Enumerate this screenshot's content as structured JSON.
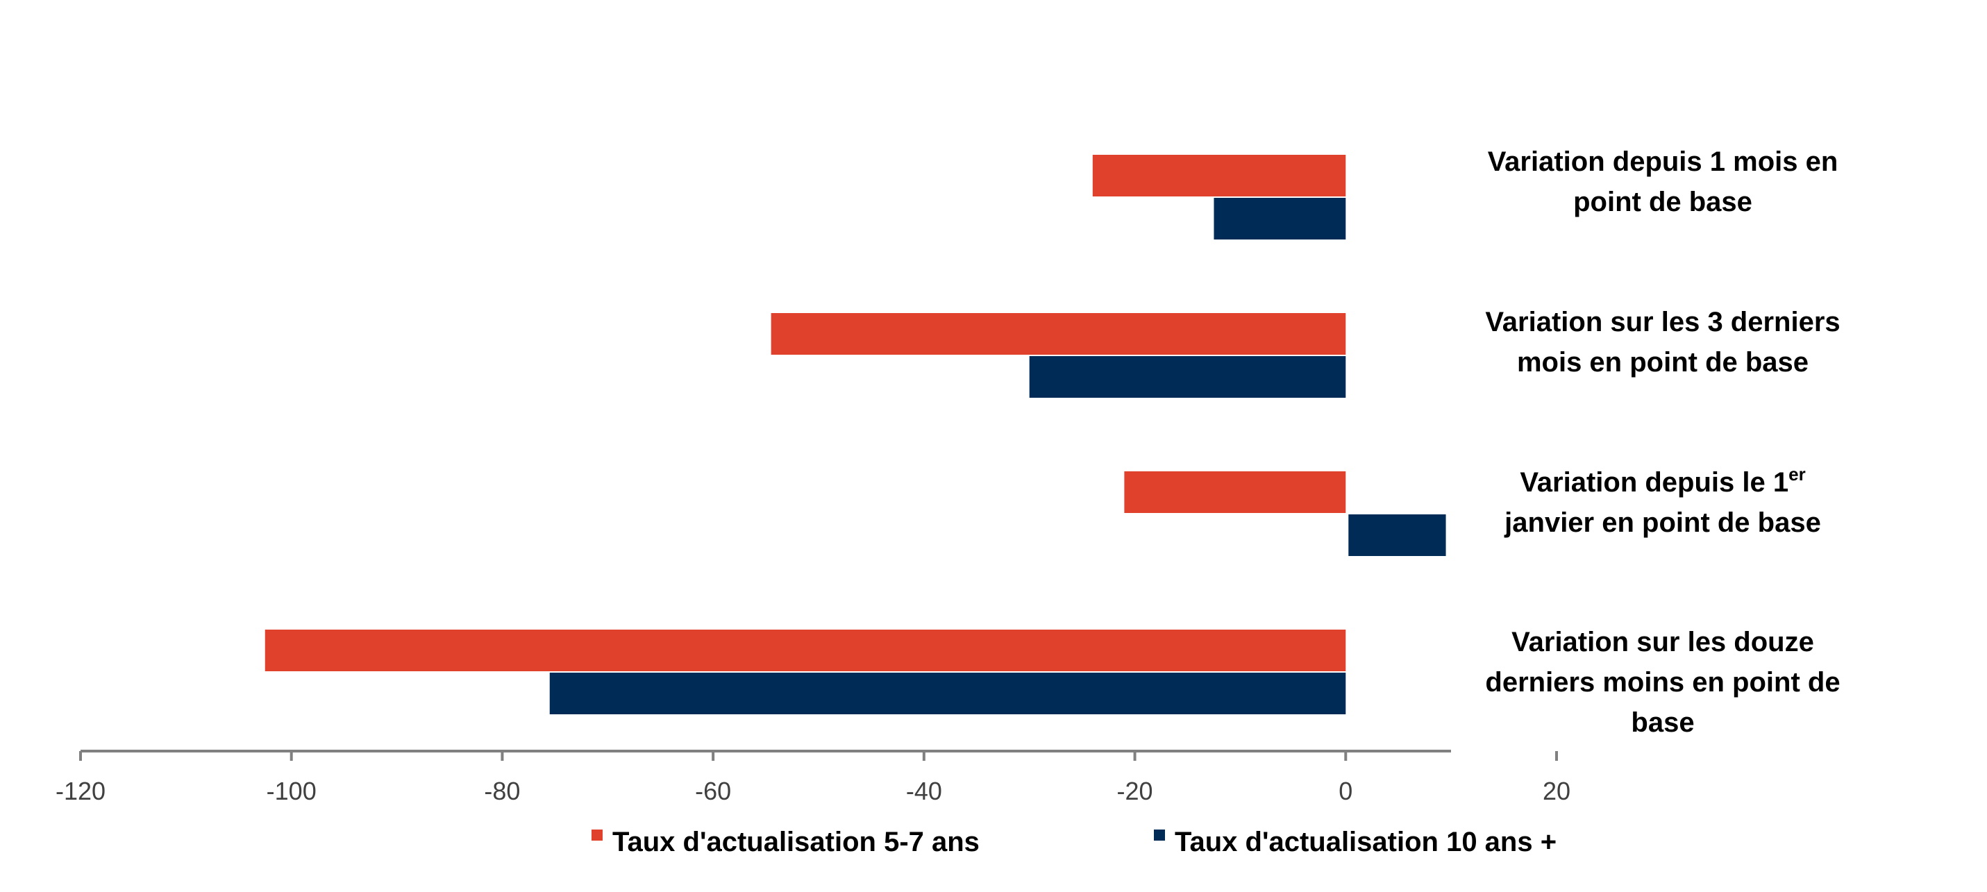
{
  "chart_data": {
    "type": "bar",
    "orientation": "horizontal",
    "categories": [
      [
        "Variation depuis 1 mois en",
        "point de base"
      ],
      [
        "Variation sur les 3 derniers",
        "mois en point de base"
      ],
      [
        "Variation depuis le 1er",
        "janvier en point de base"
      ],
      [
        "Variation sur les douze",
        "derniers moins en point de",
        "base"
      ]
    ],
    "series": [
      {
        "name": "Taux d'actualisation 5-7 ans",
        "color": "#E0412D",
        "values": [
          -24,
          -54.5,
          -21,
          -102.5
        ]
      },
      {
        "name": "Taux d'actualisation 10 ans +",
        "color": "#002B57",
        "values": [
          -12.5,
          -30,
          9.5,
          -75.5
        ]
      }
    ],
    "x_ticks": [
      "-120",
      "-100",
      "-80",
      "-60",
      "-40",
      "-20",
      "0",
      "20"
    ],
    "xlim": [
      -120,
      20
    ],
    "grid": false,
    "legend_position": "bottom"
  }
}
